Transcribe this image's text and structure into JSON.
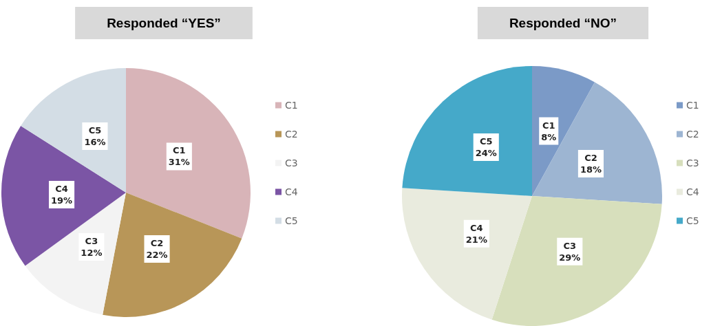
{
  "chart_data": [
    {
      "type": "pie",
      "title": "Responded “YES”",
      "categories": [
        "C1",
        "C2",
        "C3",
        "C4",
        "C5"
      ],
      "values": [
        31,
        22,
        12,
        19,
        16
      ],
      "value_labels": [
        "31%",
        "22%",
        "12%",
        "19%",
        "16%"
      ],
      "colors": [
        "#d8b4b8",
        "#b89658",
        "#f3f3f3",
        "#7b55a5",
        "#d3dde5"
      ],
      "legend": "right"
    },
    {
      "type": "pie",
      "title": "Responded “NO”",
      "categories": [
        "C1",
        "C2",
        "C3",
        "C4",
        "C5"
      ],
      "values": [
        8,
        18,
        29,
        21,
        24
      ],
      "value_labels": [
        "8%",
        "18%",
        "29%",
        "21%",
        "24%"
      ],
      "colors": [
        "#7b9ac7",
        "#9db5d2",
        "#d7dfbc",
        "#e9ebde",
        "#45a9c9"
      ],
      "legend": "right"
    }
  ]
}
